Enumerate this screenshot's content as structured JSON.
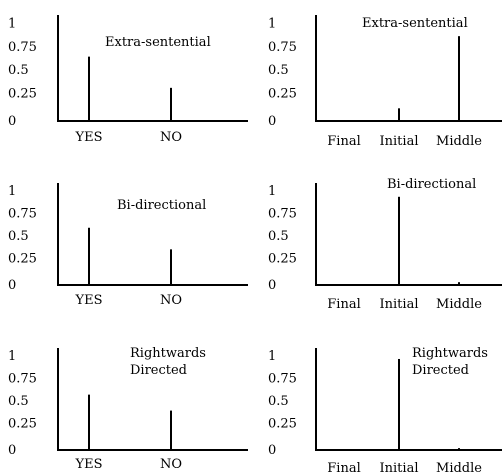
{
  "chart_data": [
    {
      "type": "bar",
      "title": [
        "Extra-sentential"
      ],
      "categories": [
        "YES",
        "NO"
      ],
      "values": [
        0.66,
        0.34
      ],
      "yticks": [
        "1",
        "0.75",
        "0.5",
        "0.25",
        "0"
      ],
      "ylim": [
        0,
        1
      ]
    },
    {
      "type": "bar",
      "title": [
        "Extra-sentential"
      ],
      "categories": [
        "Final",
        "Initial",
        "Middle"
      ],
      "values": [
        0,
        0.13,
        0.87
      ],
      "yticks": [
        "1",
        "0.75",
        "0.5",
        "0.25",
        "0"
      ],
      "ylim": [
        0,
        1
      ]
    },
    {
      "type": "bar",
      "title": [
        "Bi-directional"
      ],
      "categories": [
        "YES",
        "NO"
      ],
      "values": [
        0.61,
        0.38
      ],
      "yticks": [
        "1",
        "0.75",
        "0.5",
        "0.25",
        "0"
      ],
      "ylim": [
        0,
        1
      ]
    },
    {
      "type": "bar",
      "title": [
        "Bi-directional"
      ],
      "categories": [
        "Final",
        "Initial",
        "Middle"
      ],
      "values": [
        0,
        0.94,
        0.03
      ],
      "yticks": [
        "1",
        "0.75",
        "0.5",
        "0.25",
        "0"
      ],
      "ylim": [
        0,
        1
      ]
    },
    {
      "type": "bar",
      "title": [
        "Rightwards",
        "Directed"
      ],
      "categories": [
        "YES",
        "NO"
      ],
      "values": [
        0.59,
        0.42
      ],
      "yticks": [
        "1",
        "0.75",
        "0.5",
        "0.25",
        "0"
      ],
      "ylim": [
        0,
        1
      ]
    },
    {
      "type": "bar",
      "title": [
        "Rightwards",
        "Directed"
      ],
      "categories": [
        "Final",
        "Initial",
        "Middle"
      ],
      "values": [
        0,
        0.97,
        0.02
      ],
      "yticks": [
        "1",
        "0.75",
        "0.5",
        "0.25",
        "0"
      ],
      "ylim": [
        0,
        1
      ]
    }
  ]
}
